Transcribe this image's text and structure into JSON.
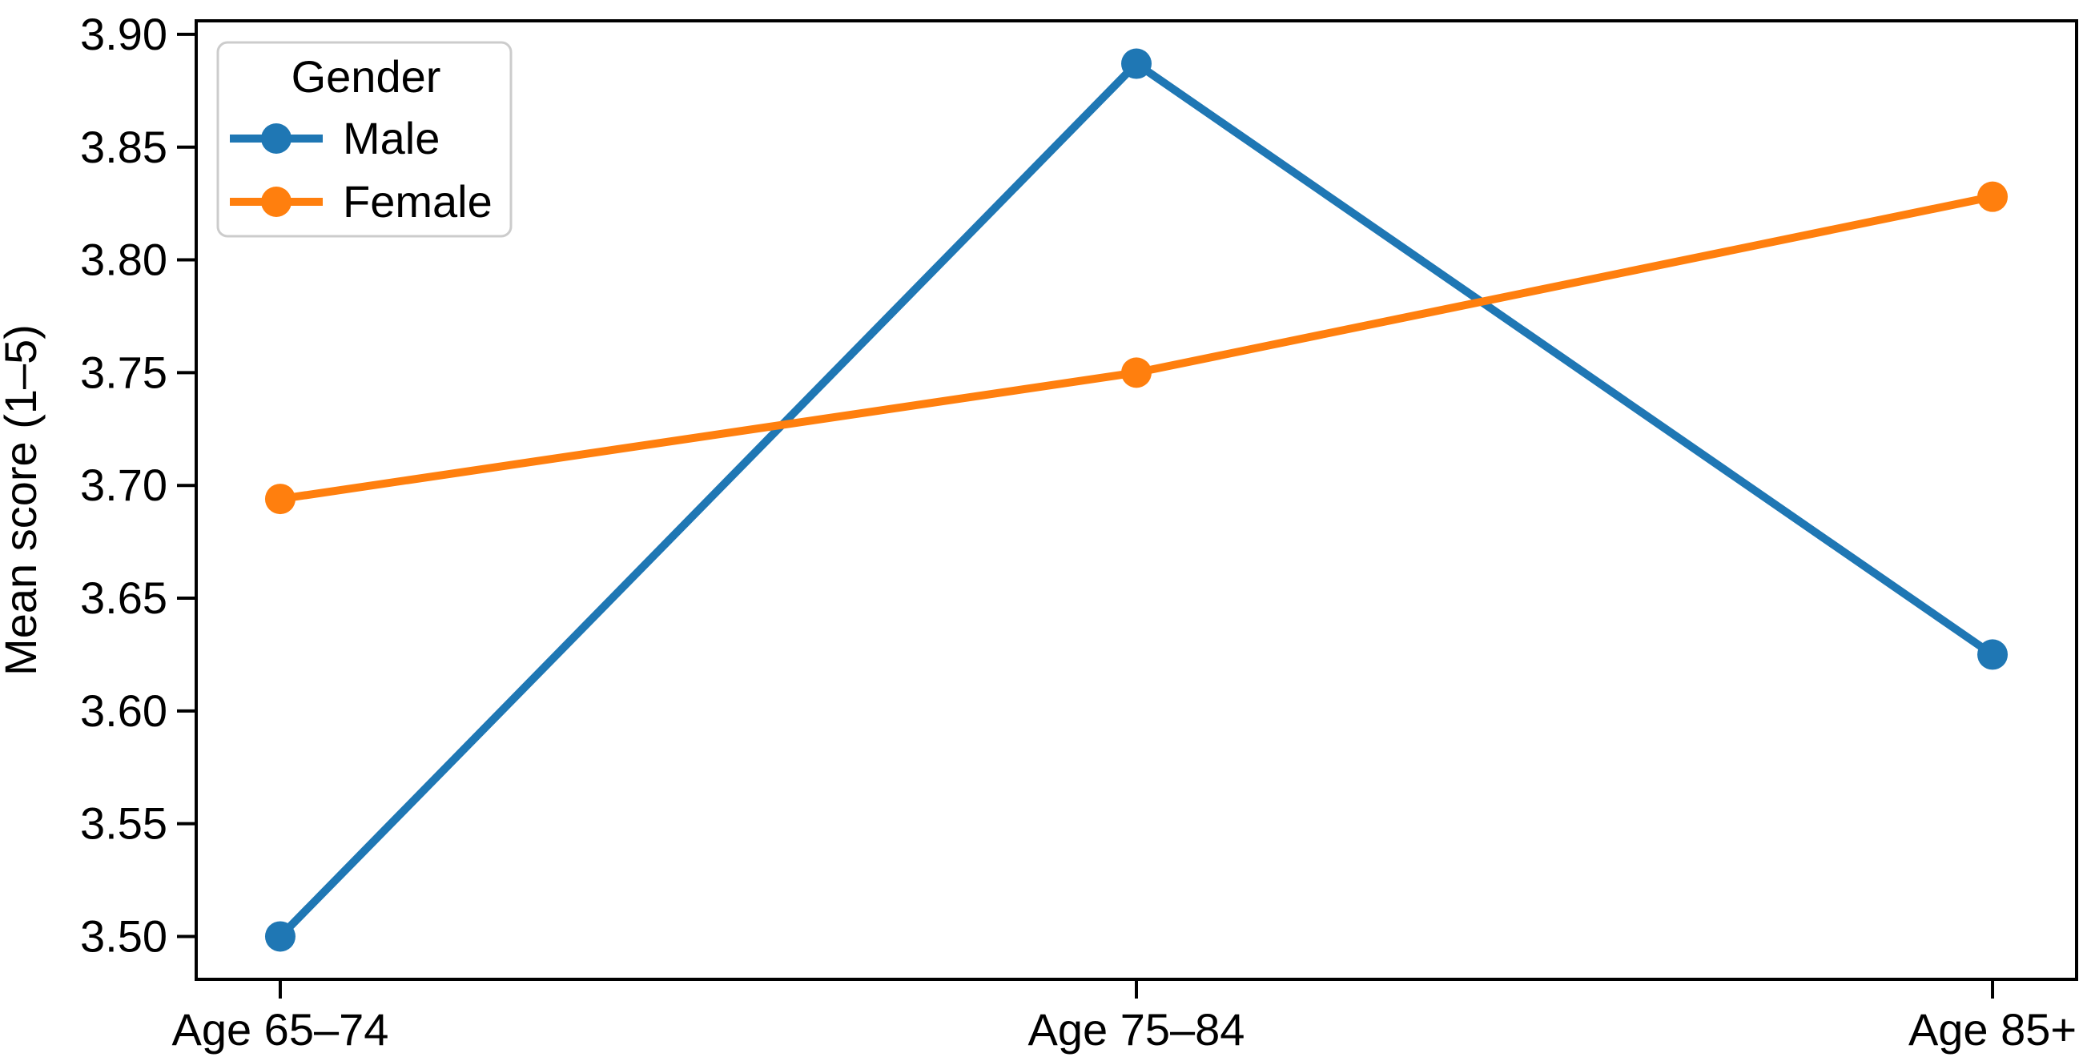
{
  "chart_data": {
    "type": "line",
    "title": "",
    "xlabel": "",
    "ylabel": "Mean score (1–5)",
    "categories": [
      "Age 65–74",
      "Age 75–84",
      "Age 85+"
    ],
    "series": [
      {
        "name": "Male",
        "color": "#1f77b4",
        "values": [
          3.5,
          3.887,
          3.625
        ]
      },
      {
        "name": "Female",
        "color": "#ff7f0e",
        "values": [
          3.694,
          3.75,
          3.828
        ]
      }
    ],
    "legend": {
      "title": "Gender",
      "position": "upper left",
      "border_color": "#cccccc",
      "background": "#ffffff",
      "entries": [
        "Male",
        "Female"
      ]
    },
    "ylim": [
      3.481,
      3.906
    ],
    "yticks": [
      3.5,
      3.55,
      3.6,
      3.65,
      3.7,
      3.75,
      3.8,
      3.85,
      3.9
    ],
    "ytick_label_format": "2dp",
    "grid": false,
    "marker": "circle",
    "axis_color": "#000000",
    "background_color": "#ffffff"
  }
}
